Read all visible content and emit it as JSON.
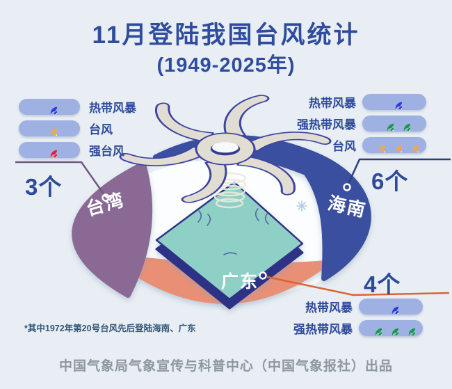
{
  "header": {
    "title": "11月登陆我国台风统计",
    "subtitle": "(1949-2025年)"
  },
  "regions": [
    {
      "name": "台湾",
      "count_label": "3个",
      "legend": [
        {
          "type": "热带风暴",
          "color": "blue",
          "count": 1
        },
        {
          "type": "台风",
          "color": "orange",
          "count": 1
        },
        {
          "type": "强台风",
          "color": "red",
          "count": 1
        }
      ]
    },
    {
      "name": "海南",
      "count_label": "6个",
      "legend": [
        {
          "type": "热带风暴",
          "color": "blue",
          "count": 1
        },
        {
          "type": "强热带风暴",
          "color": "green",
          "count": 2
        },
        {
          "type": "台风",
          "color": "orange",
          "count": 3
        }
      ]
    },
    {
      "name": "广东",
      "count_label": "4个",
      "legend": [
        {
          "type": "热带风暴",
          "color": "blue",
          "count": 1
        },
        {
          "type": "强热带风暴",
          "color": "green",
          "count": 3
        }
      ]
    }
  ],
  "footnote": "*其中1972年第20号台风先后登陆海南、广东",
  "credit": "中国气象局气象宣传与科普中心（中国气象报社）出品",
  "colors": {
    "background": "#e8eef3",
    "title": "#2f4c9e",
    "pill": "#9fb0e2",
    "arc_taiwan": "#8a6b94",
    "arc_hainan": "#3b4fa0",
    "arc_guangdong": "#e88f76",
    "line_taiwan": "#6f5784",
    "line_hainan": "#2c3f7c",
    "line_guangdong": "#dd6333",
    "icon": {
      "blue": "#2b3bd6",
      "orange": "#f2a93f",
      "red": "#ee1c25",
      "green": "#169a44"
    }
  },
  "chart_data": {
    "type": "bar",
    "title": "11月登陆我国台风统计",
    "subtitle": "(1949-2025年)",
    "categories": [
      "台湾",
      "海南",
      "广东"
    ],
    "series": [
      {
        "name": "热带风暴",
        "values": [
          1,
          1,
          1
        ]
      },
      {
        "name": "强热带风暴",
        "values": [
          0,
          2,
          3
        ]
      },
      {
        "name": "台风",
        "values": [
          1,
          3,
          0
        ]
      },
      {
        "name": "强台风",
        "values": [
          1,
          0,
          0
        ]
      }
    ],
    "totals": [
      3,
      6,
      4
    ],
    "unit": "个",
    "legend_position": "around-ring",
    "note": "*其中1972年第20号台风先后登陆海南、广东"
  }
}
